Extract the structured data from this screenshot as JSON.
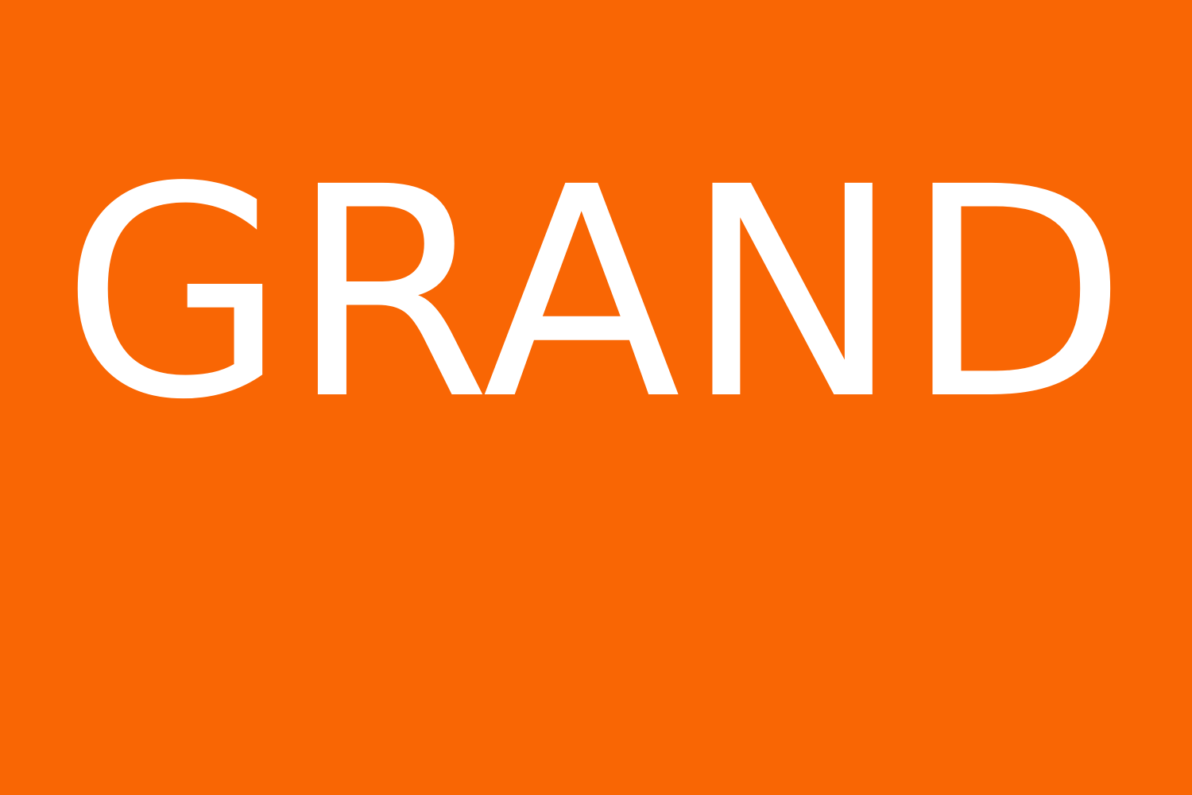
{
  "banner": {
    "text": "GRAND",
    "background_color": "#f96604",
    "text_color": "#ffffff"
  }
}
